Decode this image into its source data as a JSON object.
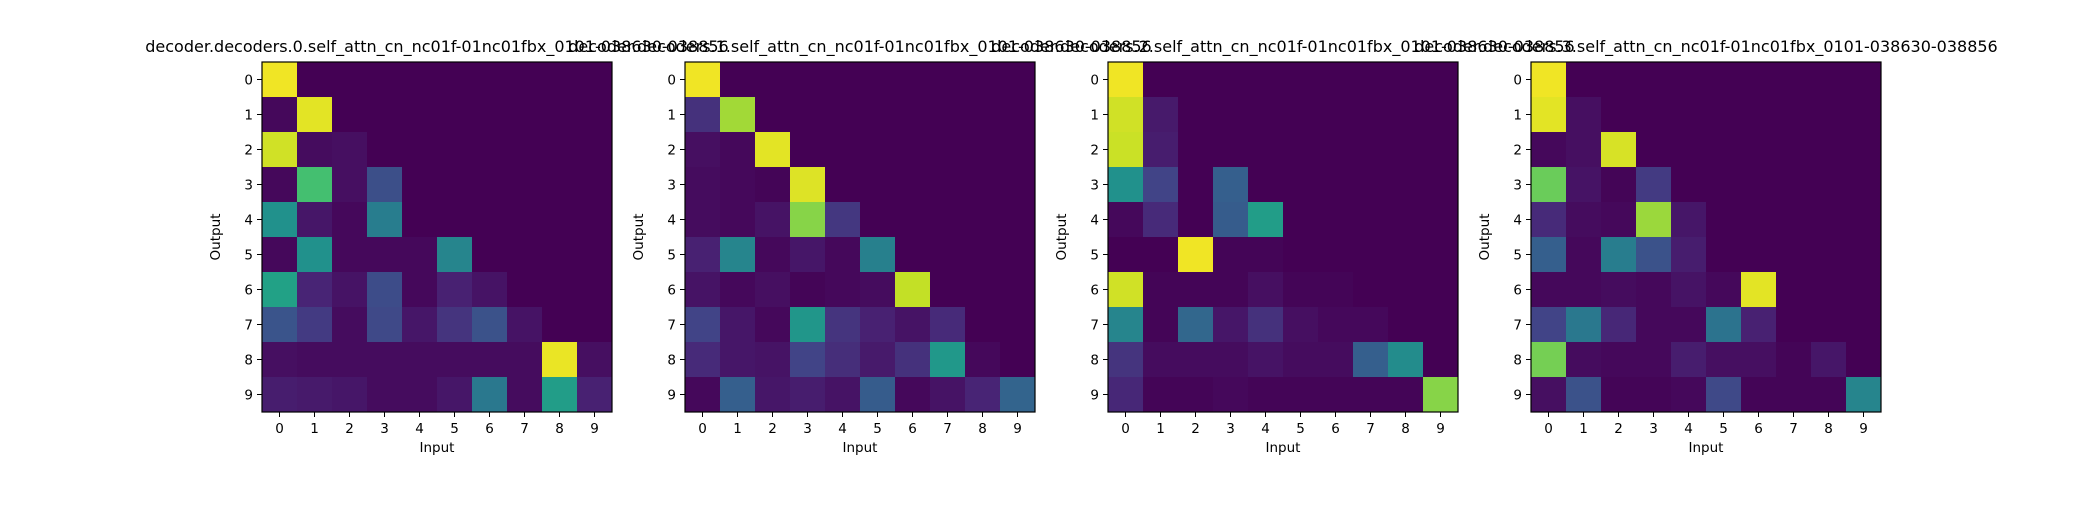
{
  "chart_data": [
    {
      "type": "heatmap",
      "title": "decoder.decoders.0.self_attn_cn_nc01f-01nc01fbx_0101-038630-038856",
      "xlabel": "Input",
      "ylabel": "Output",
      "x_ticks": [
        "0",
        "1",
        "2",
        "3",
        "4",
        "5",
        "6",
        "7",
        "8",
        "9"
      ],
      "y_ticks": [
        "0",
        "1",
        "2",
        "3",
        "4",
        "5",
        "6",
        "7",
        "8",
        "9"
      ],
      "colormap": "viridis",
      "vmin": 0,
      "vmax": 1,
      "z": [
        [
          0.98,
          0,
          0,
          0,
          0,
          0,
          0,
          0,
          0,
          0
        ],
        [
          0.02,
          0.96,
          0,
          0,
          0,
          0,
          0,
          0,
          0,
          0
        ],
        [
          0.93,
          0.03,
          0.04,
          0,
          0,
          0,
          0,
          0,
          0,
          0
        ],
        [
          0.02,
          0.7,
          0.04,
          0.24,
          0,
          0,
          0,
          0,
          0,
          0
        ],
        [
          0.5,
          0.06,
          0.02,
          0.42,
          0,
          0,
          0,
          0,
          0,
          0
        ],
        [
          0.02,
          0.5,
          0.02,
          0.02,
          0.02,
          0.45,
          0,
          0,
          0,
          0
        ],
        [
          0.57,
          0.1,
          0.05,
          0.23,
          0.02,
          0.09,
          0.05,
          0,
          0,
          0
        ],
        [
          0.26,
          0.17,
          0.03,
          0.22,
          0.06,
          0.15,
          0.25,
          0.05,
          0,
          0
        ],
        [
          0.04,
          0.03,
          0.03,
          0.03,
          0.03,
          0.03,
          0.03,
          0.03,
          0.97,
          0.04
        ],
        [
          0.08,
          0.07,
          0.06,
          0.03,
          0.03,
          0.06,
          0.4,
          0.03,
          0.55,
          0.09
        ]
      ]
    },
    {
      "type": "heatmap",
      "title": "decoder.decoders.1.self_attn_cn_nc01f-01nc01fbx_0101-038630-038856",
      "xlabel": "Input",
      "ylabel": "Output",
      "x_ticks": [
        "0",
        "1",
        "2",
        "3",
        "4",
        "5",
        "6",
        "7",
        "8",
        "9"
      ],
      "y_ticks": [
        "0",
        "1",
        "2",
        "3",
        "4",
        "5",
        "6",
        "7",
        "8",
        "9"
      ],
      "colormap": "viridis",
      "vmin": 0,
      "vmax": 1,
      "z": [
        [
          0.98,
          0,
          0,
          0,
          0,
          0,
          0,
          0,
          0,
          0
        ],
        [
          0.14,
          0.86,
          0,
          0,
          0,
          0,
          0,
          0,
          0,
          0
        ],
        [
          0.04,
          0.02,
          0.96,
          0,
          0,
          0,
          0,
          0,
          0,
          0
        ],
        [
          0.03,
          0.02,
          0.01,
          0.95,
          0,
          0,
          0,
          0,
          0,
          0
        ],
        [
          0.03,
          0.02,
          0.05,
          0.82,
          0.16,
          0,
          0,
          0,
          0,
          0
        ],
        [
          0.09,
          0.45,
          0.02,
          0.06,
          0.02,
          0.43,
          0,
          0,
          0,
          0
        ],
        [
          0.05,
          0.02,
          0.04,
          0.01,
          0.02,
          0.03,
          0.91,
          0,
          0,
          0
        ],
        [
          0.2,
          0.06,
          0.02,
          0.52,
          0.15,
          0.09,
          0.05,
          0.12,
          0,
          0
        ],
        [
          0.12,
          0.06,
          0.05,
          0.2,
          0.13,
          0.07,
          0.14,
          0.53,
          0.02,
          0
        ],
        [
          0.02,
          0.3,
          0.06,
          0.08,
          0.05,
          0.29,
          0.02,
          0.05,
          0.1,
          0.32
        ]
      ]
    },
    {
      "type": "heatmap",
      "title": "decoder.decoders.2.self_attn_cn_nc01f-01nc01fbx_0101-038630-038856",
      "xlabel": "Input",
      "ylabel": "Output",
      "x_ticks": [
        "0",
        "1",
        "2",
        "3",
        "4",
        "5",
        "6",
        "7",
        "8",
        "9"
      ],
      "y_ticks": [
        "0",
        "1",
        "2",
        "3",
        "4",
        "5",
        "6",
        "7",
        "8",
        "9"
      ],
      "colormap": "viridis",
      "vmin": 0,
      "vmax": 1,
      "z": [
        [
          0.98,
          0,
          0,
          0,
          0,
          0,
          0,
          0,
          0,
          0
        ],
        [
          0.93,
          0.07,
          0,
          0,
          0,
          0,
          0,
          0,
          0,
          0
        ],
        [
          0.92,
          0.08,
          0,
          0,
          0,
          0,
          0,
          0,
          0,
          0
        ],
        [
          0.5,
          0.2,
          0,
          0.3,
          0,
          0,
          0,
          0,
          0,
          0
        ],
        [
          0.02,
          0.12,
          0,
          0.29,
          0.55,
          0,
          0,
          0,
          0,
          0
        ],
        [
          0,
          0,
          0.98,
          0.01,
          0.01,
          0,
          0,
          0,
          0,
          0
        ],
        [
          0.93,
          0.01,
          0.01,
          0.01,
          0.04,
          0.01,
          0.01,
          0,
          0,
          0
        ],
        [
          0.45,
          0.01,
          0.33,
          0.06,
          0.14,
          0.04,
          0.02,
          0.02,
          0,
          0
        ],
        [
          0.15,
          0.03,
          0.03,
          0.03,
          0.05,
          0.03,
          0.03,
          0.3,
          0.48,
          0
        ],
        [
          0.11,
          0.01,
          0.01,
          0.02,
          0.01,
          0.01,
          0.01,
          0.01,
          0.01,
          0.82
        ]
      ]
    },
    {
      "type": "heatmap",
      "title": "decoder.decoders.3.self_attn_cn_nc01f-01nc01fbx_0101-038630-038856",
      "xlabel": "Input",
      "ylabel": "Output",
      "x_ticks": [
        "0",
        "1",
        "2",
        "3",
        "4",
        "5",
        "6",
        "7",
        "8",
        "9"
      ],
      "y_ticks": [
        "0",
        "1",
        "2",
        "3",
        "4",
        "5",
        "6",
        "7",
        "8",
        "9"
      ],
      "colormap": "viridis",
      "vmin": 0,
      "vmax": 1,
      "z": [
        [
          0.98,
          0,
          0,
          0,
          0,
          0,
          0,
          0,
          0,
          0
        ],
        [
          0.96,
          0.04,
          0,
          0,
          0,
          0,
          0,
          0,
          0,
          0
        ],
        [
          0.02,
          0.04,
          0.94,
          0,
          0,
          0,
          0,
          0,
          0,
          0
        ],
        [
          0.77,
          0.05,
          0.01,
          0.17,
          0,
          0,
          0,
          0,
          0,
          0
        ],
        [
          0.12,
          0.03,
          0.02,
          0.85,
          0.06,
          0,
          0,
          0,
          0,
          0
        ],
        [
          0.3,
          0.02,
          0.42,
          0.25,
          0.08,
          0,
          0,
          0,
          0,
          0
        ],
        [
          0.02,
          0.02,
          0.03,
          0.02,
          0.05,
          0.02,
          0.96,
          0,
          0,
          0
        ],
        [
          0.2,
          0.4,
          0.11,
          0.02,
          0.02,
          0.38,
          0.09,
          0,
          0,
          0
        ],
        [
          0.79,
          0.03,
          0.02,
          0.02,
          0.08,
          0.04,
          0.04,
          0.01,
          0.06,
          0
        ],
        [
          0.04,
          0.25,
          0.01,
          0.01,
          0.02,
          0.22,
          0.01,
          0.01,
          0.01,
          0.45
        ]
      ]
    }
  ]
}
